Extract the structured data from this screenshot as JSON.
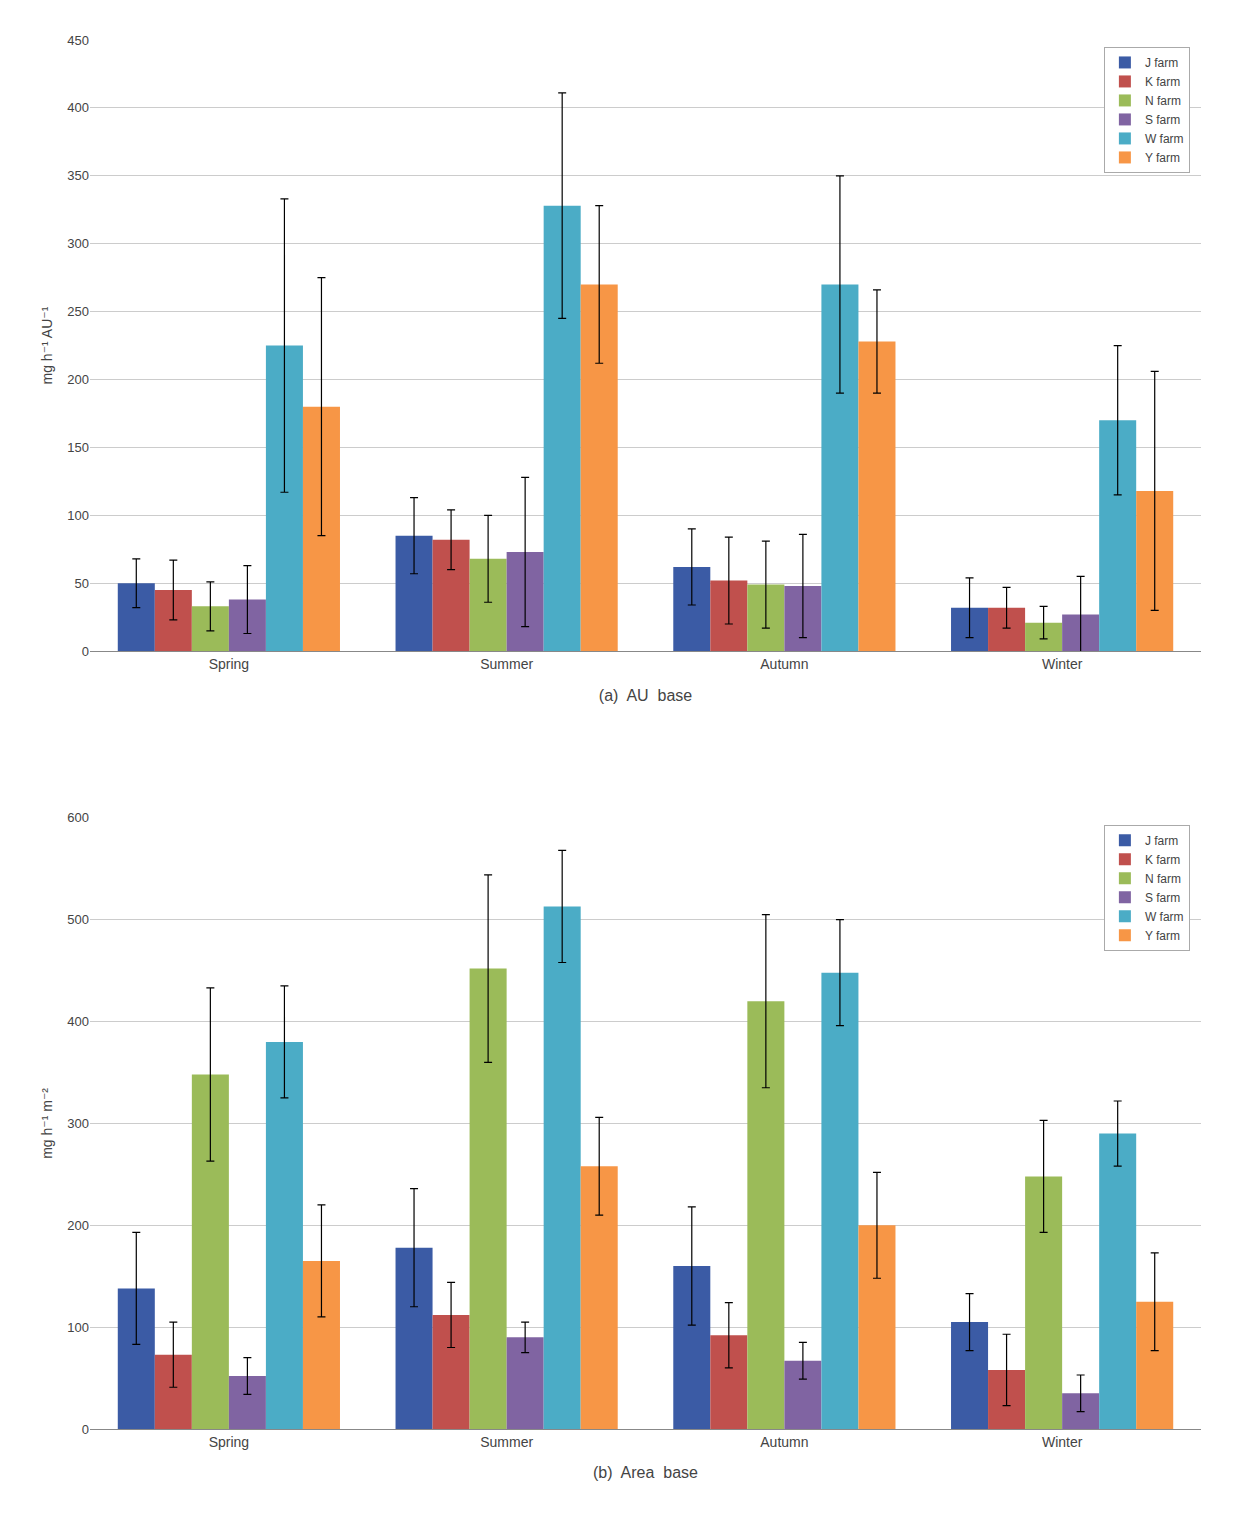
{
  "chart_data": [
    {
      "type": "bar",
      "title": "(a)  AU  base",
      "ylabel": "mg h⁻¹ AU⁻¹",
      "categories": [
        "Spring",
        "Summer",
        "Autumn",
        "Winter"
      ],
      "series": [
        {
          "name": "J farm",
          "color": "#3B5BA5",
          "values": [
            50,
            85,
            62,
            32
          ],
          "errors": [
            18,
            28,
            28,
            22
          ]
        },
        {
          "name": "K farm",
          "color": "#C0504D",
          "values": [
            45,
            82,
            52,
            32
          ],
          "errors": [
            22,
            22,
            32,
            15
          ]
        },
        {
          "name": "N farm",
          "color": "#9BBB59",
          "values": [
            33,
            68,
            49,
            21
          ],
          "errors": [
            18,
            32,
            32,
            12
          ]
        },
        {
          "name": "S farm",
          "color": "#8064A2",
          "values": [
            38,
            73,
            48,
            27
          ],
          "errors": [
            25,
            55,
            38,
            28
          ]
        },
        {
          "name": "W farm",
          "color": "#4BACC6",
          "values": [
            225,
            328,
            270,
            170
          ],
          "errors": [
            108,
            83,
            80,
            55
          ]
        },
        {
          "name": "Y farm",
          "color": "#F79646",
          "values": [
            180,
            270,
            228,
            118
          ],
          "errors": [
            95,
            58,
            38,
            88
          ]
        }
      ],
      "ylim": [
        0,
        450
      ],
      "yticks": [
        0,
        50,
        100,
        150,
        200,
        250,
        300,
        350,
        400,
        450
      ],
      "grid": true,
      "legend": "upper right"
    },
    {
      "type": "bar",
      "title": "(b)  Area  base",
      "ylabel": "mg h⁻¹ m⁻²",
      "categories": [
        "Spring",
        "Summer",
        "Autumn",
        "Winter"
      ],
      "series": [
        {
          "name": "J farm",
          "color": "#3B5BA5",
          "values": [
            138,
            178,
            160,
            105
          ],
          "errors": [
            55,
            58,
            58,
            28
          ]
        },
        {
          "name": "K farm",
          "color": "#C0504D",
          "values": [
            73,
            112,
            92,
            58
          ],
          "errors": [
            32,
            32,
            32,
            35
          ]
        },
        {
          "name": "N farm",
          "color": "#9BBB59",
          "values": [
            348,
            452,
            420,
            248
          ],
          "errors": [
            85,
            92,
            85,
            55
          ]
        },
        {
          "name": "S farm",
          "color": "#8064A2",
          "values": [
            52,
            90,
            67,
            35
          ],
          "errors": [
            18,
            15,
            18,
            18
          ]
        },
        {
          "name": "W farm",
          "color": "#4BACC6",
          "values": [
            380,
            513,
            448,
            290
          ],
          "errors": [
            55,
            55,
            52,
            32
          ]
        },
        {
          "name": "Y farm",
          "color": "#F79646",
          "values": [
            165,
            258,
            200,
            125
          ],
          "errors": [
            55,
            48,
            52,
            48
          ]
        }
      ],
      "ylim": [
        0,
        600
      ],
      "yticks": [
        0,
        100,
        200,
        300,
        400,
        500,
        600
      ],
      "grid": true,
      "legend": "upper right"
    }
  ]
}
